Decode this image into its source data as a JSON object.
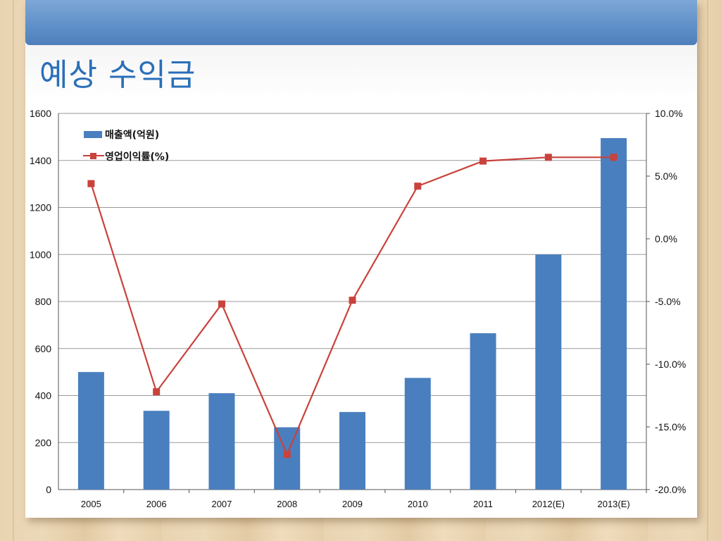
{
  "slide": {
    "title": "예상 수익금"
  },
  "colors": {
    "bar": "#4a7fbf",
    "line": "#c9423b",
    "header": "#5f8fc8",
    "title": "#2a6fb8"
  },
  "chart_data": {
    "type": "bar",
    "categories": [
      "2005",
      "2006",
      "2007",
      "2008",
      "2009",
      "2010",
      "2011",
      "2012(E)",
      "2013(E)"
    ],
    "series": [
      {
        "name": "매출액(억원)",
        "type": "bar",
        "axis": "left",
        "values": [
          500,
          335,
          410,
          265,
          330,
          475,
          665,
          1000,
          1495
        ]
      },
      {
        "name": "영업이익률(%)",
        "type": "line",
        "axis": "right",
        "values": [
          4.4,
          -12.2,
          -5.2,
          -17.2,
          -4.9,
          4.2,
          6.2,
          6.5,
          6.5
        ]
      }
    ],
    "left_axis": {
      "ylim": [
        0,
        1600
      ],
      "ticks": [
        "0",
        "200",
        "400",
        "600",
        "800",
        "1000",
        "1200",
        "1400",
        "1600"
      ]
    },
    "right_axis": {
      "ylim": [
        -20,
        10
      ],
      "ticks": [
        "-20.0%",
        "-15.0%",
        "-10.0%",
        "-5.0%",
        "0.0%",
        "5.0%",
        "10.0%"
      ]
    },
    "grid": true,
    "legend": "top-left"
  }
}
